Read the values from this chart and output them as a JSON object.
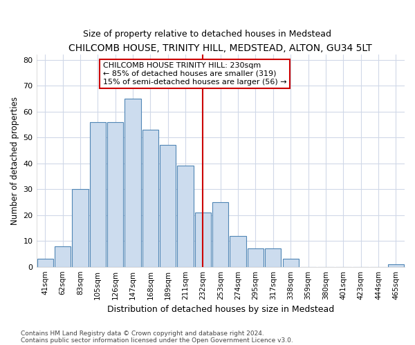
{
  "title": "CHILCOMB HOUSE, TRINITY HILL, MEDSTEAD, ALTON, GU34 5LT",
  "subtitle": "Size of property relative to detached houses in Medstead",
  "xlabel": "Distribution of detached houses by size in Medstead",
  "ylabel": "Number of detached properties",
  "footer_line1": "Contains HM Land Registry data © Crown copyright and database right 2024.",
  "footer_line2": "Contains public sector information licensed under the Open Government Licence v3.0.",
  "bin_labels": [
    "41sqm",
    "62sqm",
    "83sqm",
    "105sqm",
    "126sqm",
    "147sqm",
    "168sqm",
    "189sqm",
    "211sqm",
    "232sqm",
    "253sqm",
    "274sqm",
    "295sqm",
    "317sqm",
    "338sqm",
    "359sqm",
    "380sqm",
    "401sqm",
    "423sqm",
    "444sqm",
    "465sqm"
  ],
  "bar_heights": [
    3,
    8,
    30,
    56,
    56,
    65,
    53,
    47,
    39,
    21,
    25,
    12,
    7,
    7,
    3,
    0,
    0,
    0,
    0,
    0,
    1
  ],
  "bar_color": "#ccdcee",
  "bar_edge_color": "#4f85b5",
  "vline_x_index": 9,
  "vline_color": "#cc0000",
  "annotation_title": "CHILCOMB HOUSE TRINITY HILL: 230sqm",
  "annotation_line1": "← 85% of detached houses are smaller (319)",
  "annotation_line2": "15% of semi-detached houses are larger (56) →",
  "annotation_box_color": "#ffffff",
  "annotation_box_edge": "#cc0000",
  "ylim": [
    0,
    82
  ],
  "yticks": [
    0,
    10,
    20,
    30,
    40,
    50,
    60,
    70,
    80
  ],
  "bg_color": "#ffffff",
  "plot_bg_color": "#ffffff",
  "grid_color": "#d0d8e8",
  "title_fontsize": 10,
  "subtitle_fontsize": 9
}
